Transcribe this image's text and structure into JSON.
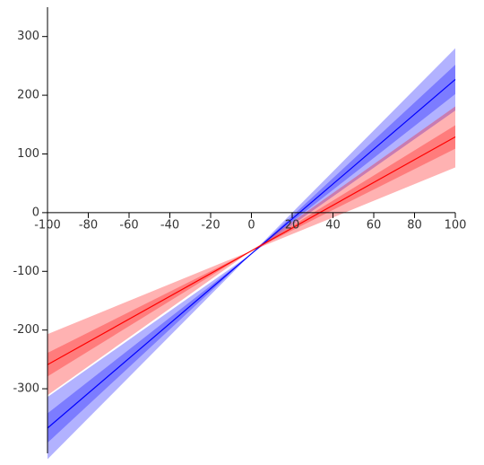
{
  "chart_data": {
    "type": "line",
    "x": [
      -100,
      0,
      100
    ],
    "xlim": [
      -100,
      100
    ],
    "ylim": [
      -410,
      350
    ],
    "xticks": [
      -100,
      -80,
      -60,
      -40,
      -20,
      0,
      20,
      40,
      60,
      80,
      100
    ],
    "yticks": [
      -300,
      -200,
      -100,
      0,
      100,
      200,
      300
    ],
    "series": [
      {
        "color": "#0000ff",
        "values": [
          -367,
          -70,
          227
        ],
        "bands": [
          {
            "lower": [
              -420,
              -70,
              174
            ],
            "upper": [
              -314,
              -70,
              280
            ]
          },
          {
            "lower": [
              -392,
              -70,
              202
            ],
            "upper": [
              -342,
              -70,
              252
            ]
          }
        ]
      },
      {
        "color": "#ff0000",
        "values": [
          -259,
          -65,
          129
        ],
        "bands": [
          {
            "lower": [
              -311,
              -65,
              77
            ],
            "upper": [
              -207,
              -65,
              181
            ]
          },
          {
            "lower": [
              -279,
              -65,
              109
            ],
            "upper": [
              -239,
              -65,
              149
            ]
          }
        ]
      }
    ]
  }
}
